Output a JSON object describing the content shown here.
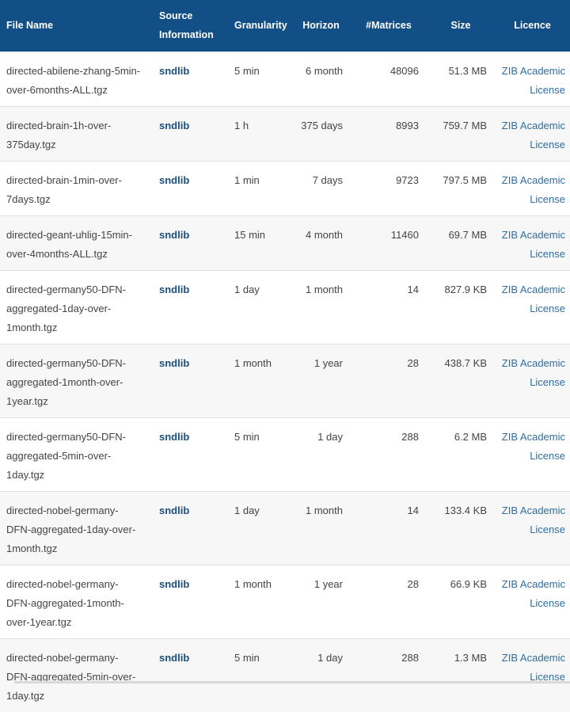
{
  "headers": {
    "file_name": "File Name",
    "source_information": "Source\nInformation",
    "granularity": "Granularity",
    "horizon": "Horizon",
    "matrices": "#Matrices",
    "size": "Size",
    "licence": "Licence"
  },
  "rows": [
    {
      "file": "directed-abilene-zhang-5min-over-6months-ALL.tgz",
      "source": "sndlib",
      "granularity": "5 min",
      "horizon": "6 month",
      "matrices": "48096",
      "size": "51.3 MB",
      "licence": "ZIB Academic License"
    },
    {
      "file": "directed-brain-1h-over-375day.tgz",
      "source": "sndlib",
      "granularity": "1 h",
      "horizon": "375 days",
      "matrices": "8993",
      "size": "759.7 MB",
      "licence": "ZIB Academic License"
    },
    {
      "file": "directed-brain-1min-over-7days.tgz",
      "source": "sndlib",
      "granularity": "1 min",
      "horizon": "7 days",
      "matrices": "9723",
      "size": "797.5 MB",
      "licence": "ZIB Academic License"
    },
    {
      "file": "directed-geant-uhlig-15min-over-4months-ALL.tgz",
      "source": "sndlib",
      "granularity": "15 min",
      "horizon": "4 month",
      "matrices": "11460",
      "size": "69.7 MB",
      "licence": "ZIB Academic License"
    },
    {
      "file": "directed-germany50-DFN-aggregated-1day-over-1month.tgz",
      "source": "sndlib",
      "granularity": "1 day",
      "horizon": "1 month",
      "matrices": "14",
      "size": "827.9 KB",
      "licence": "ZIB Academic License"
    },
    {
      "file": "directed-germany50-DFN-aggregated-1month-over-1year.tgz",
      "source": "sndlib",
      "granularity": "1 month",
      "horizon": "1 year",
      "matrices": "28",
      "size": "438.7 KB",
      "licence": "ZIB Academic License"
    },
    {
      "file": "directed-germany50-DFN-aggregated-5min-over-1day.tgz",
      "source": "sndlib",
      "granularity": "5 min",
      "horizon": "1 day",
      "matrices": "288",
      "size": "6.2 MB",
      "licence": "ZIB Academic License"
    },
    {
      "file": "directed-nobel-germany-DFN-aggregated-1day-over-1month.tgz",
      "source": "sndlib",
      "granularity": "1 day",
      "horizon": "1 month",
      "matrices": "14",
      "size": "133.4 KB",
      "licence": "ZIB Academic License"
    },
    {
      "file": "directed-nobel-germany-DFN-aggregated-1month-over-1year.tgz",
      "source": "sndlib",
      "granularity": "1 month",
      "horizon": "1 year",
      "matrices": "28",
      "size": "66.9 KB",
      "licence": "ZIB Academic License"
    },
    {
      "file": "directed-nobel-germany-DFN-aggregated-5min-over-1day.tgz",
      "source": "sndlib",
      "granularity": "5 min",
      "horizon": "1 day",
      "matrices": "288",
      "size": "1.3 MB",
      "licence": "ZIB Academic License"
    }
  ],
  "colors": {
    "header_bg": "#124f86",
    "link": "#2e6da4",
    "source_link": "#1c4f7e",
    "row_alt": "#f7f7f7"
  }
}
